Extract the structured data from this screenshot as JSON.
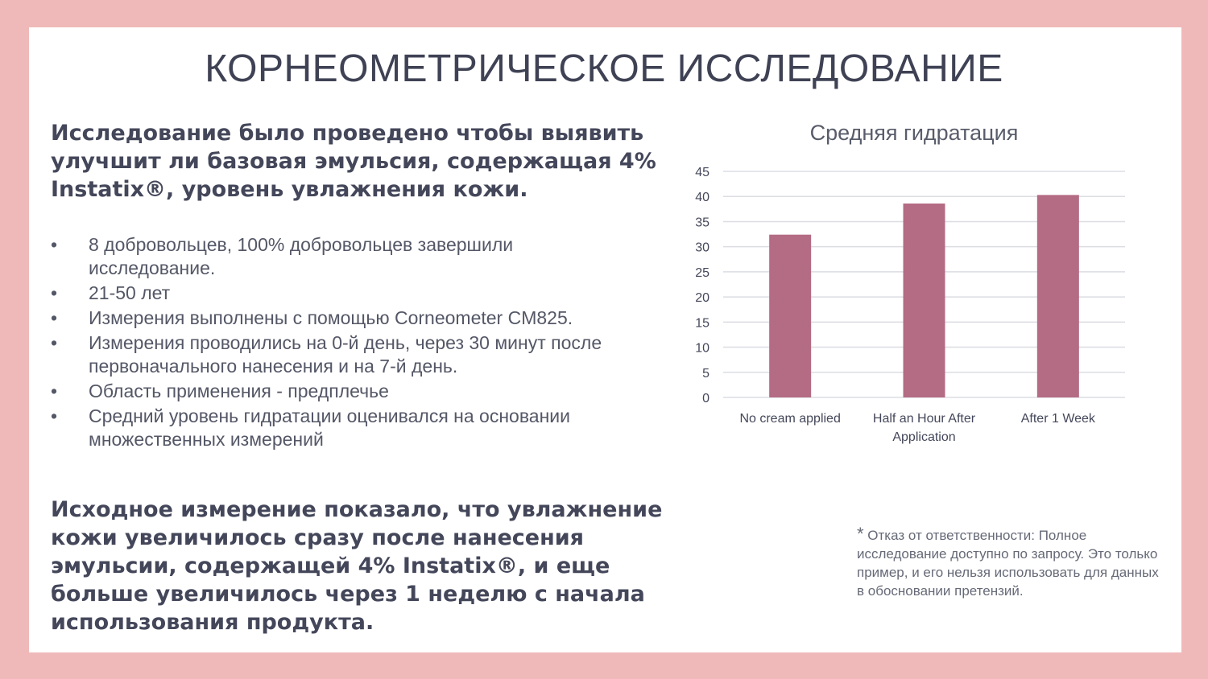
{
  "title": "КОРНЕОМЕТРИЧЕСКОЕ ИССЛЕДОВАНИЕ",
  "intro": "Исследование было проведено чтобы выявить улучшит ли базовая эмульсия, содержащая 4% Instatix®, уровень увлажнения кожи.",
  "bullet_icon": "•",
  "bullets": [
    "8 добровольцев, 100% добровольцев завершили исследование.",
    "21-50 лет",
    "Измерения выполнены с помощью Corneometer CM825.",
    "Измерения проводились на 0-й день, через 30 минут после первоначального нанесения и на 7-й день.",
    "Область применения - предплечье",
    "Средний уровень гидратации оценивался на основании множественных измерений"
  ],
  "conclusion": "Исходное измерение показало, что увлажнение кожи увеличилось сразу после нанесения эмульсии, содержащей 4% Instatix®, и еще больше увеличилось через 1 неделю с начала использования продукта.",
  "disclaimer": {
    "star": "*",
    "text": " Отказ от ответственности: Полное исследование доступно по запросу. Это только пример, и его нельзя использовать для данных в обосновании претензий."
  },
  "chart_data": {
    "type": "bar",
    "title": "Средняя гидратация",
    "categories": [
      "No cream applied",
      "Half an Hour After Application",
      "After 1 Week"
    ],
    "values": [
      32.4,
      38.6,
      40.3
    ],
    "ylim": [
      0,
      45
    ],
    "yticks": [
      "0",
      "5",
      "10",
      "15",
      "20",
      "25",
      "30",
      "35",
      "40",
      "45"
    ],
    "grid": true,
    "bar_color": "#b46b84",
    "xlabel": "",
    "ylabel": ""
  }
}
